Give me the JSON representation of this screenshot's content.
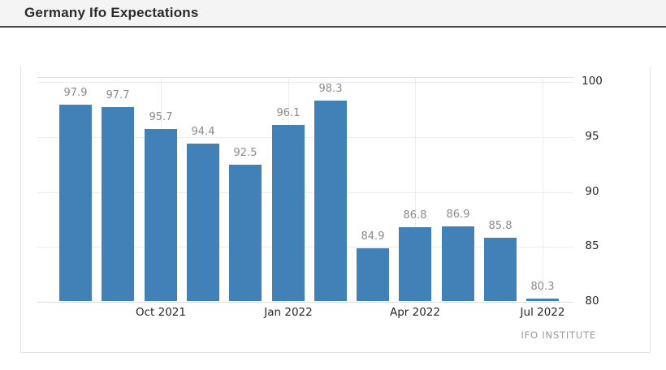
{
  "header": {
    "title": "Germany Ifo Expectations"
  },
  "chart_data": {
    "type": "bar",
    "title": "Germany Ifo Expectations",
    "values": [
      97.9,
      97.7,
      95.7,
      94.4,
      92.5,
      96.1,
      98.3,
      84.9,
      86.8,
      86.9,
      85.8,
      80.3
    ],
    "bar_labels": [
      "97.9",
      "97.7",
      "95.7",
      "94.4",
      "92.5",
      "96.1",
      "98.3",
      "84.9",
      "86.8",
      "86.9",
      "85.8",
      "80.3"
    ],
    "x_tick_labels": [
      "Oct 2021",
      "Jan 2022",
      "Apr 2022",
      "Jul 2022"
    ],
    "x_tick_bar_indexes": [
      2,
      5,
      8,
      11
    ],
    "y_ticks": [
      80,
      85,
      90,
      95,
      100
    ],
    "y_tick_labels": [
      "80",
      "85",
      "90",
      "95",
      "100"
    ],
    "ylim": [
      80,
      100.5
    ],
    "xlabel": "",
    "ylabel": "",
    "grid": "on",
    "legend": "none",
    "y_axis_side": "right",
    "source": "IFO INSTITUTE",
    "colors": {
      "bar": "#4181b7",
      "value_label": "#8b8b8b",
      "axis_label": "#262626",
      "gridline": "#ececec",
      "plot_border": "#e0e0e0",
      "source_text": "#9a9a9a",
      "header_bg": "#f4f4f4",
      "header_border": "#454545"
    }
  }
}
